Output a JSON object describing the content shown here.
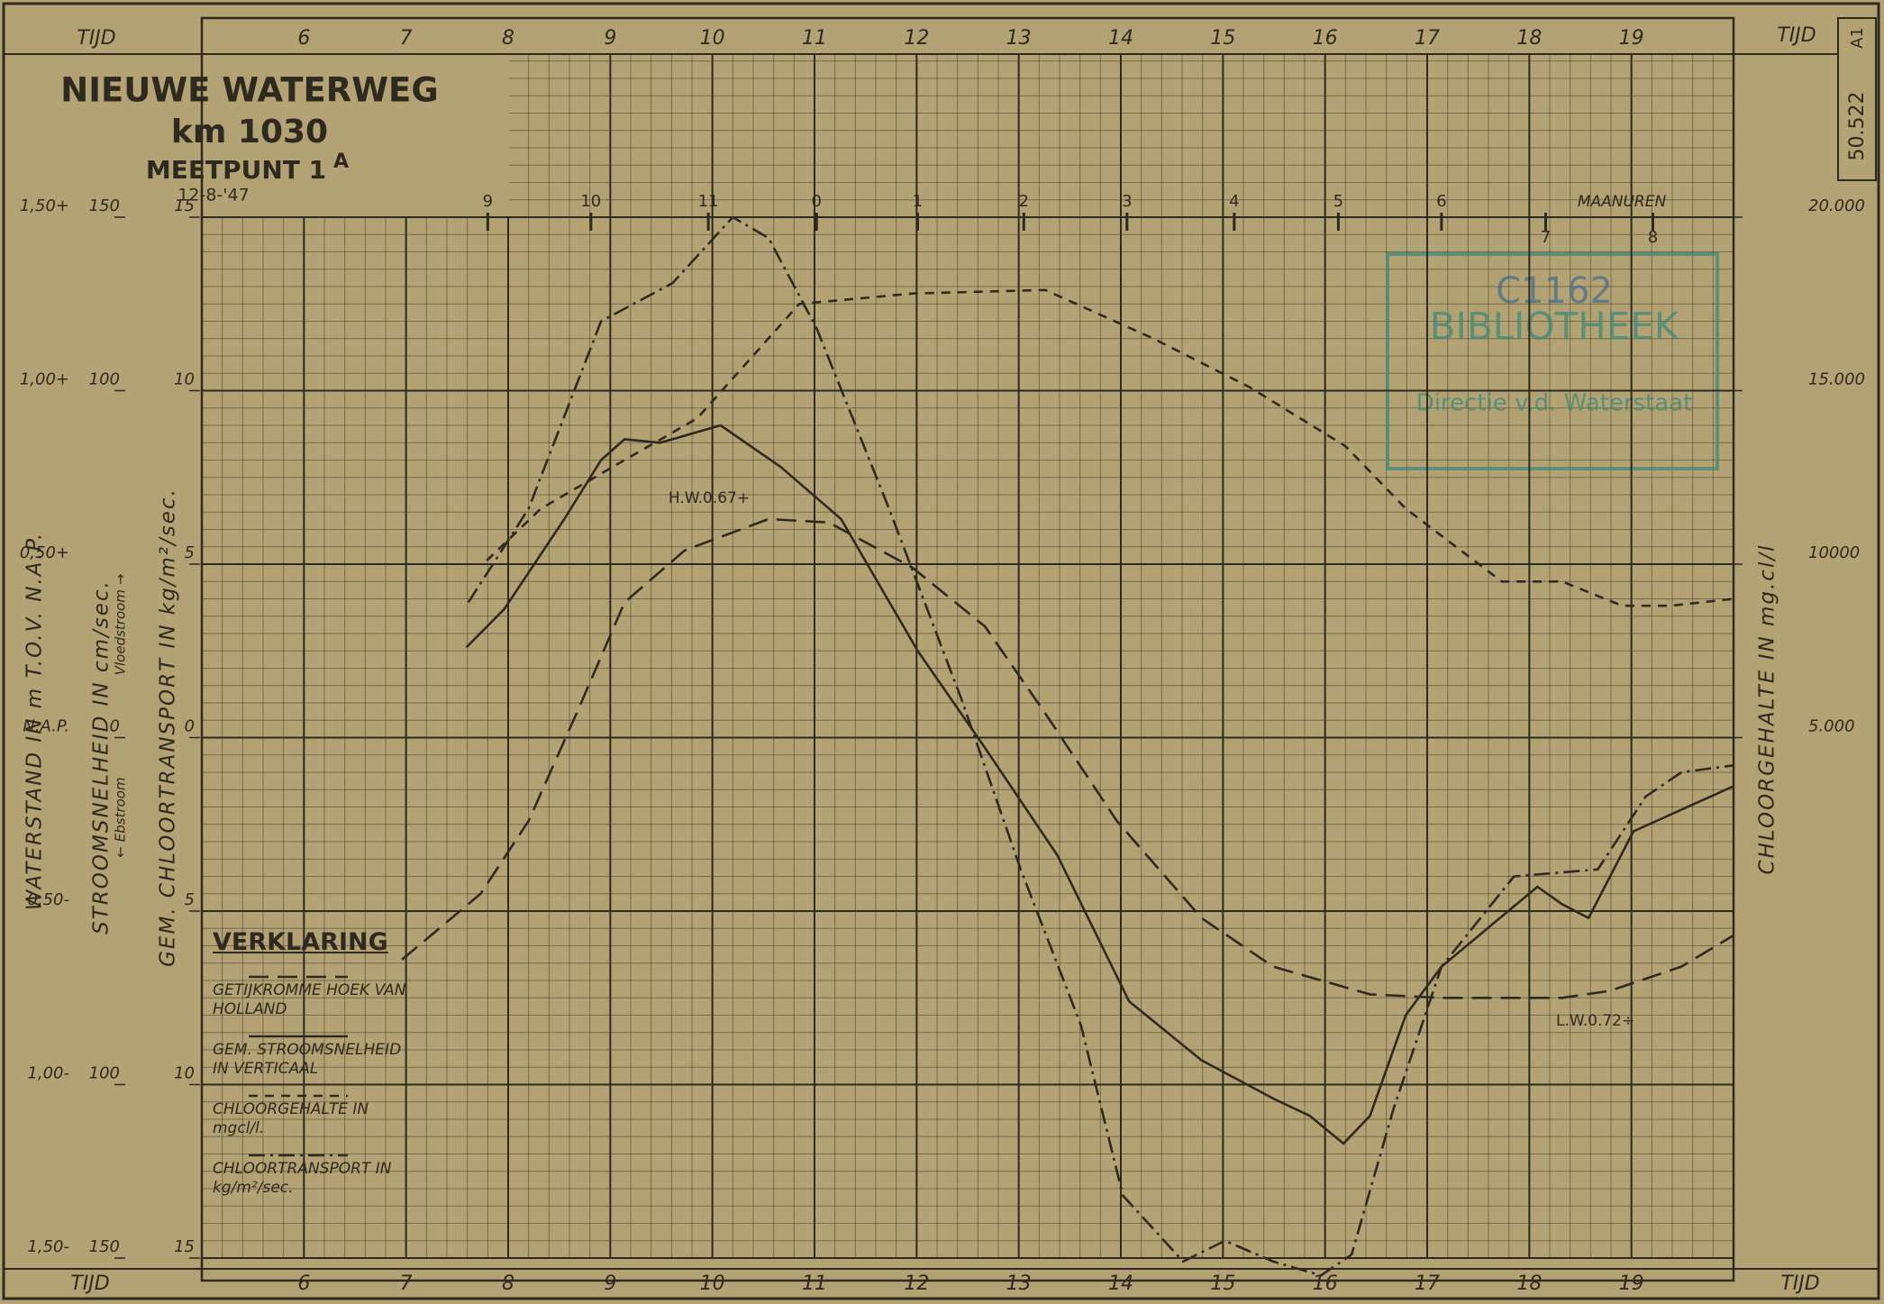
{
  "chart_data": {
    "type": "line",
    "title": "NIEUWE WATERWEG",
    "subtitle": "km 1030",
    "station": "MEETPUNT 1",
    "station_sup": "A",
    "date": "12-8-'47",
    "sheet_number": "50.522",
    "sheet_code": "A1",
    "x_label": "TIJD",
    "xlim": [
      5,
      20
    ],
    "xticks": [
      6,
      7,
      8,
      9,
      10,
      11,
      12,
      13,
      14,
      15,
      16,
      17,
      18,
      19
    ],
    "moon_label": "MAANUREN",
    "moon_ticks": [
      {
        "value": 7.8,
        "label": "9"
      },
      {
        "value": 8.81,
        "label": "10"
      },
      {
        "value": 9.96,
        "label": "11"
      },
      {
        "value": 11.02,
        "label": "0"
      },
      {
        "value": 12.01,
        "label": "1"
      },
      {
        "value": 13.05,
        "label": "2"
      },
      {
        "value": 14.06,
        "label": "3"
      },
      {
        "value": 15.11,
        "label": "4"
      },
      {
        "value": 16.13,
        "label": "5"
      },
      {
        "value": 17.14,
        "label": "6"
      },
      {
        "value": 18.16,
        "label": "7"
      },
      {
        "value": 19.21,
        "label": "8"
      }
    ],
    "y_axes": [
      {
        "label": "WATERSTAND IN m T.O.V. N.A.P.",
        "lim": [
          -1.5,
          1.5
        ],
        "ticks": [
          {
            "value": 1.5,
            "label": "1,50+"
          },
          {
            "value": 1,
            "label": "1,00+"
          },
          {
            "value": 0.5,
            "label": "0,50+"
          },
          {
            "value": 0,
            "label": "N.A.P."
          },
          {
            "value": -0.5,
            "label": "0,50-"
          },
          {
            "value": -1,
            "label": "1,00-"
          },
          {
            "value": -1.5,
            "label": "1,50-"
          }
        ]
      },
      {
        "label": "STROOMSNELHEID IN cm/sec.",
        "sublabels": [
          "← Ebstroom",
          "Vloedstroom →"
        ],
        "lim": [
          -150,
          150
        ],
        "ticks": [
          150,
          100,
          0,
          {
            "value": -100,
            "label": "100"
          },
          {
            "value": -150,
            "label": "150"
          }
        ]
      },
      {
        "label": "GEM. CHLOORTRANSPORT IN kg/m²/sec.",
        "lim": [
          -15,
          15
        ],
        "ticks": [
          15,
          10,
          5,
          0,
          {
            "value": -5,
            "label": "5"
          },
          {
            "value": -10,
            "label": "10"
          },
          {
            "value": -15,
            "label": "15"
          }
        ]
      },
      {
        "label": "CHLOORGEHALTE IN mg.cl/l",
        "lim": [
          -10000,
          20000
        ],
        "ticks": [
          {
            "value": 5000,
            "label": "5.000"
          },
          {
            "value": 10000,
            "label": "10000"
          },
          {
            "value": 15000,
            "label": "15.000"
          },
          {
            "value": 20000,
            "label": "20.000"
          }
        ]
      }
    ],
    "grid": true,
    "legend_title": "VERKLARING",
    "series": [
      {
        "name": "GETIJKROMME HOEK VAN HOLLAND",
        "axis": 0,
        "dash": "long",
        "color": "#2e2a1f",
        "x": [
          6.96,
          7.73,
          8.2,
          8.67,
          9.14,
          9.73,
          10.55,
          11.14,
          11.96,
          12.67,
          13.26,
          13.96,
          14.79,
          15.49,
          16.44,
          17.14,
          18.32,
          18.79,
          19.49,
          20
        ],
        "values": [
          -0.64,
          -0.45,
          -0.24,
          0.07,
          0.39,
          0.54,
          0.63,
          0.62,
          0.49,
          0.32,
          0.07,
          -0.24,
          -0.52,
          -0.66,
          -0.74,
          -0.75,
          -0.75,
          -0.73,
          -0.66,
          -0.57
        ]
      },
      {
        "name": "GEM. STROOMSNELHEID IN VERTICAAL",
        "axis": 1,
        "dash": "solid",
        "color": "#2e2a1f",
        "x": [
          7.59,
          7.96,
          8.55,
          8.91,
          9.14,
          9.49,
          10.08,
          10.67,
          11.26,
          12.01,
          12.67,
          13.38,
          14.08,
          14.79,
          15.49,
          15.85,
          16.18,
          16.44,
          16.79,
          17.14,
          18.08,
          18.32,
          18.58,
          19.02,
          20
        ],
        "values": [
          26,
          37,
          63,
          80,
          86,
          85,
          90,
          78,
          63,
          25,
          -3,
          -34,
          -76,
          -93,
          -104,
          -109,
          -117,
          -109,
          -80,
          -66,
          -43,
          -48,
          -52,
          -27,
          -14
        ]
      },
      {
        "name": "CHLOORGEHALTE IN mgcl/l.",
        "axis": 3,
        "dash": "short",
        "color": "#2e2a1f",
        "x": [
          7.79,
          8.32,
          9.14,
          9.85,
          10.85,
          11.96,
          13.26,
          14.32,
          15.26,
          16.2,
          16.79,
          17.73,
          18.32,
          18.91,
          19.38,
          20
        ],
        "values": [
          10100,
          11600,
          13000,
          14200,
          17500,
          17800,
          17900,
          16500,
          15100,
          13400,
          11600,
          9500,
          9500,
          8800,
          8800,
          9000
        ]
      },
      {
        "name": "CHLOORTRANSPORT IN kg/m²/sec.",
        "axis": 2,
        "dash": "dashdot",
        "color": "#2e2a1f",
        "x": [
          7.61,
          8.2,
          8.91,
          9.61,
          10.2,
          10.55,
          11.02,
          11.73,
          12.44,
          13.02,
          13.61,
          14.02,
          14.61,
          15.02,
          15.49,
          15.96,
          16.26,
          16.67,
          17.14,
          17.85,
          18.67,
          19.14,
          19.49,
          20
        ],
        "values": [
          3.9,
          6.6,
          12.0,
          13.1,
          15.0,
          14.4,
          11.8,
          6.6,
          1.1,
          -3.8,
          -8.3,
          -13.2,
          -15.1,
          -14.5,
          -15.1,
          -15.5,
          -14.9,
          -10.7,
          -6.6,
          -4.0,
          -3.8,
          -1.7,
          -1.0,
          -0.8
        ]
      }
    ],
    "high_water_label": "H.W.0.67+",
    "low_water_label": "L.W.0.72÷",
    "stamp": {
      "number": "C1162",
      "title": "BIBLIOTHEEK",
      "department": "Directie v.d. Waterstaat"
    }
  }
}
